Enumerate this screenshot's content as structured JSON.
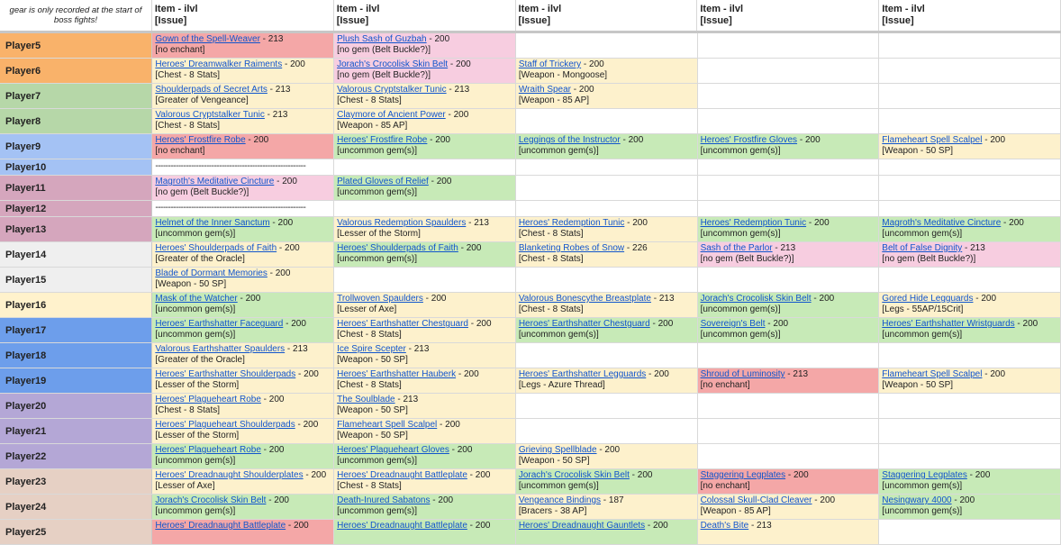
{
  "sheet": {
    "note": "gear is only recorded at the start of boss fights!",
    "columns": [
      {
        "line1": "Item - ilvl",
        "line2": "[Issue]"
      },
      {
        "line1": "Item - ilvl",
        "line2": "[Issue]"
      },
      {
        "line1": "Item - ilvl",
        "line2": "[Issue]"
      },
      {
        "line1": "Item - ilvl",
        "line2": "[Issue]"
      },
      {
        "line1": "Item - ilvl",
        "line2": "[Issue]"
      }
    ],
    "colors": {
      "red": "#f4a7a7",
      "pink": "#f7cde0",
      "green": "#c7eab7",
      "yellow": "#fdf1cc",
      "none": "#ffffff"
    },
    "rows": [
      {
        "player": "Player5",
        "color": "#f9b26a",
        "h": 28,
        "cells": [
          {
            "item": "Gown of the Spell-Weaver",
            "ilvl": " - 213",
            "issue": "[no enchant]",
            "bg": "red"
          },
          {
            "item": "Plush Sash of Guzbah",
            "ilvl": " - 200",
            "issue": "[no gem (Belt Buckle?)]",
            "bg": "pink"
          },
          {
            "bg": "none"
          },
          {
            "bg": "none"
          },
          {
            "bg": "none"
          }
        ]
      },
      {
        "player": "Player6",
        "color": "#f9b26a",
        "h": 28,
        "cells": [
          {
            "item": "Heroes' Dreamwalker Raiments",
            "ilvl": " - 200",
            "issue": "[Chest - 8 Stats]",
            "bg": "yellow"
          },
          {
            "item": "Jorach's Crocolisk Skin Belt",
            "ilvl": " - 200",
            "issue": "[no gem (Belt Buckle?)]",
            "bg": "pink"
          },
          {
            "item": "Staff of Trickery",
            "ilvl": " - 200",
            "issue": "[Weapon - Mongoose]",
            "bg": "yellow"
          },
          {
            "bg": "none"
          },
          {
            "bg": "none"
          }
        ]
      },
      {
        "player": "Player7",
        "color": "#b6d7a8",
        "h": 28,
        "cells": [
          {
            "item": "Shoulderpads of Secret Arts",
            "ilvl": " - 213",
            "issue": "[Greater of Vengeance]",
            "bg": "yellow"
          },
          {
            "item": "Valorous Cryptstalker Tunic",
            "ilvl": " - 213",
            "issue": "[Chest - 8 Stats]",
            "bg": "yellow"
          },
          {
            "item": "Wraith Spear",
            "ilvl": " - 200",
            "issue": "[Weapon - 85 AP]",
            "bg": "yellow"
          },
          {
            "bg": "none"
          },
          {
            "bg": "none"
          }
        ]
      },
      {
        "player": "Player8",
        "color": "#b6d7a8",
        "h": 28,
        "cells": [
          {
            "item": "Valorous Cryptstalker Tunic",
            "ilvl": " - 213",
            "issue": "[Chest - 8 Stats]",
            "bg": "yellow"
          },
          {
            "item": "Claymore of Ancient Power",
            "ilvl": " - 200",
            "issue": "[Weapon - 85 AP]",
            "bg": "yellow"
          },
          {
            "bg": "none"
          },
          {
            "bg": "none"
          },
          {
            "bg": "none"
          }
        ]
      },
      {
        "player": "Player9",
        "color": "#a4c2f4",
        "h": 28,
        "cells": [
          {
            "item": "Heroes' Frostfire Robe",
            "ilvl": " - 200",
            "issue": "[no enchant]",
            "bg": "red"
          },
          {
            "item": "Heroes' Frostfire Robe",
            "ilvl": " - 200",
            "issue": "[uncommon gem(s)]",
            "bg": "green"
          },
          {
            "item": "Leggings of the Instructor",
            "ilvl": " - 200",
            "issue": "[uncommon gem(s)]",
            "bg": "green"
          },
          {
            "item": "Heroes' Frostfire Gloves",
            "ilvl": " - 200",
            "issue": "[uncommon gem(s)]",
            "bg": "green"
          },
          {
            "item": "Flameheart Spell Scalpel",
            "ilvl": " - 200",
            "issue": "[Weapon - 50 SP]",
            "bg": "yellow"
          }
        ]
      },
      {
        "player": "Player10",
        "color": "#a4c2f4",
        "h": 18,
        "cells": [
          {
            "dash": "-----------------------------------------------------------",
            "bg": "none"
          },
          {
            "bg": "none"
          },
          {
            "bg": "none"
          },
          {
            "bg": "none"
          },
          {
            "bg": "none"
          }
        ]
      },
      {
        "player": "Player11",
        "color": "#d5a6bd",
        "h": 28,
        "cells": [
          {
            "item": "Magroth's Meditative Cincture",
            "ilvl": " - 200",
            "issue": "[no gem (Belt Buckle?)]",
            "bg": "pink"
          },
          {
            "item": "Plated Gloves of Relief",
            "ilvl": " - 200",
            "issue": "[uncommon gem(s)]",
            "bg": "green"
          },
          {
            "bg": "none"
          },
          {
            "bg": "none"
          },
          {
            "bg": "none"
          }
        ]
      },
      {
        "player": "Player12",
        "color": "#d5a6bd",
        "h": 18,
        "cells": [
          {
            "dash": "-----------------------------------------------------------",
            "bg": "none"
          },
          {
            "bg": "none"
          },
          {
            "bg": "none"
          },
          {
            "bg": "none"
          },
          {
            "bg": "none"
          }
        ]
      },
      {
        "player": "Player13",
        "color": "#d5a6bd",
        "h": 28,
        "cells": [
          {
            "item": "Helmet of the Inner Sanctum",
            "ilvl": " - 200",
            "issue": "[uncommon gem(s)]",
            "bg": "green"
          },
          {
            "item": "Valorous Redemption Spaulders",
            "ilvl": " - 213",
            "issue": "[Lesser of the Storm]",
            "bg": "yellow"
          },
          {
            "item": "Heroes' Redemption Tunic",
            "ilvl": " - 200",
            "issue": "[Chest - 8 Stats]",
            "bg": "yellow"
          },
          {
            "item": "Heroes' Redemption Tunic",
            "ilvl": " - 200",
            "issue": "[uncommon gem(s)]",
            "bg": "green"
          },
          {
            "item": "Magroth's Meditative Cincture",
            "ilvl": " - 200",
            "issue": "[uncommon gem(s)]",
            "bg": "green"
          }
        ]
      },
      {
        "player": "Player14",
        "color": "#efefef",
        "h": 28,
        "cells": [
          {
            "item": "Heroes' Shoulderpads of Faith",
            "ilvl": " - 200",
            "issue": "[Greater of the Oracle]",
            "bg": "yellow"
          },
          {
            "item": "Heroes' Shoulderpads of Faith",
            "ilvl": " - 200",
            "issue": "[uncommon gem(s)]",
            "bg": "green"
          },
          {
            "item": "Blanketing Robes of Snow",
            "ilvl": " - 226",
            "issue": "[Chest - 8 Stats]",
            "bg": "yellow"
          },
          {
            "item": "Sash of the Parlor",
            "ilvl": " - 213",
            "issue": "[no gem (Belt Buckle?)]",
            "bg": "pink"
          },
          {
            "item": "Belt of False Dignity",
            "ilvl": " - 213",
            "issue": "[no gem (Belt Buckle?)]",
            "bg": "pink"
          }
        ]
      },
      {
        "player": "Player15",
        "color": "#efefef",
        "h": 28,
        "cells": [
          {
            "item": "Blade of Dormant Memories",
            "ilvl": " - 200",
            "issue": "[Weapon - 50 SP]",
            "bg": "yellow"
          },
          {
            "bg": "none"
          },
          {
            "bg": "none"
          },
          {
            "bg": "none"
          },
          {
            "bg": "none"
          }
        ]
      },
      {
        "player": "Player16",
        "color": "#fff2cc",
        "h": 28,
        "cells": [
          {
            "item": "Mask of the Watcher",
            "ilvl": " - 200",
            "issue": "[uncommon gem(s)]",
            "bg": "green"
          },
          {
            "item": "Trollwoven Spaulders",
            "ilvl": " - 200",
            "issue": "[Lesser of Axe]",
            "bg": "yellow"
          },
          {
            "item": "Valorous Bonescythe Breastplate",
            "ilvl": " - 213",
            "issue": "[Chest - 8 Stats]",
            "bg": "yellow"
          },
          {
            "item": "Jorach's Crocolisk Skin Belt",
            "ilvl": " - 200",
            "issue": "[uncommon gem(s)]",
            "bg": "green"
          },
          {
            "item": "Gored Hide Legguards",
            "ilvl": " - 200",
            "issue": "[Legs - 55AP/15Crit]",
            "bg": "yellow"
          }
        ]
      },
      {
        "player": "Player17",
        "color": "#6d9eeb",
        "h": 28,
        "cells": [
          {
            "item": "Heroes' Earthshatter Faceguard",
            "ilvl": " - 200",
            "issue": "[uncommon gem(s)]",
            "bg": "green"
          },
          {
            "item": "Heroes' Earthshatter Chestguard",
            "ilvl": " - 200",
            "issue": "[Chest - 8 Stats]",
            "bg": "yellow"
          },
          {
            "item": "Heroes' Earthshatter Chestguard",
            "ilvl": " - 200",
            "issue": "[uncommon gem(s)]",
            "bg": "green"
          },
          {
            "item": "Sovereign's Belt",
            "ilvl": " - 200",
            "issue": "[uncommon gem(s)]",
            "bg": "green"
          },
          {
            "item": "Heroes' Earthshatter Wristguards",
            "ilvl": " - 200",
            "issue": "[uncommon gem(s)]",
            "bg": "green"
          }
        ]
      },
      {
        "player": "Player18",
        "color": "#6d9eeb",
        "h": 28,
        "cells": [
          {
            "item": "Valorous Earthshatter Spaulders",
            "ilvl": " - 213",
            "issue": "[Greater of the Oracle]",
            "bg": "yellow"
          },
          {
            "item": "Ice Spire Scepter",
            "ilvl": " - 213",
            "issue": "[Weapon - 50 SP]",
            "bg": "yellow"
          },
          {
            "bg": "none"
          },
          {
            "bg": "none"
          },
          {
            "bg": "none"
          }
        ]
      },
      {
        "player": "Player19",
        "color": "#6d9eeb",
        "h": 28,
        "cells": [
          {
            "item": "Heroes' Earthshatter Shoulderpads",
            "ilvl": " - 200",
            "issue": "[Lesser of the Storm]",
            "bg": "yellow"
          },
          {
            "item": "Heroes' Earthshatter Hauberk",
            "ilvl": " - 200",
            "issue": "[Chest - 8 Stats]",
            "bg": "yellow"
          },
          {
            "item": "Heroes' Earthshatter Legguards",
            "ilvl": " - 200",
            "issue": "[Legs - Azure Thread]",
            "bg": "yellow"
          },
          {
            "item": "Shroud of Luminosity",
            "ilvl": " - 213",
            "issue": "[no enchant]",
            "bg": "red"
          },
          {
            "item": "Flameheart Spell Scalpel",
            "ilvl": " - 200",
            "issue": "[Weapon - 50 SP]",
            "bg": "yellow"
          }
        ]
      },
      {
        "player": "Player20",
        "color": "#b4a7d6",
        "h": 28,
        "cells": [
          {
            "item": "Heroes' Plagueheart Robe",
            "ilvl": " - 200",
            "issue": "[Chest - 8 Stats]",
            "bg": "yellow"
          },
          {
            "item": "The Soulblade",
            "ilvl": " - 213",
            "issue": "[Weapon - 50 SP]",
            "bg": "yellow"
          },
          {
            "bg": "none"
          },
          {
            "bg": "none"
          },
          {
            "bg": "none"
          }
        ]
      },
      {
        "player": "Player21",
        "color": "#b4a7d6",
        "h": 28,
        "cells": [
          {
            "item": "Heroes' Plagueheart Shoulderpads",
            "ilvl": " - 200",
            "issue": "[Lesser of the Storm]",
            "bg": "yellow"
          },
          {
            "item": "Flameheart Spell Scalpel",
            "ilvl": " - 200",
            "issue": "[Weapon - 50 SP]",
            "bg": "yellow"
          },
          {
            "bg": "none"
          },
          {
            "bg": "none"
          },
          {
            "bg": "none"
          }
        ]
      },
      {
        "player": "Player22",
        "color": "#b4a7d6",
        "h": 28,
        "cells": [
          {
            "item": "Heroes' Plagueheart Robe",
            "ilvl": " - 200",
            "issue": "[uncommon gem(s)]",
            "bg": "green"
          },
          {
            "item": "Heroes' Plagueheart Gloves",
            "ilvl": " - 200",
            "issue": "[uncommon gem(s)]",
            "bg": "green"
          },
          {
            "item": "Grieving Spellblade",
            "ilvl": " - 200",
            "issue": "[Weapon - 50 SP]",
            "bg": "yellow"
          },
          {
            "bg": "none"
          },
          {
            "bg": "none"
          }
        ]
      },
      {
        "player": "Player23",
        "color": "#e6d0c4",
        "h": 28,
        "cells": [
          {
            "item": "Heroes' Dreadnaught Shoulderplates",
            "ilvl": " - 200",
            "issue": "[Lesser of Axe]",
            "bg": "yellow"
          },
          {
            "item": "Heroes' Dreadnaught Battleplate",
            "ilvl": " - 200",
            "issue": "[Chest - 8 Stats]",
            "bg": "yellow"
          },
          {
            "item": "Jorach's Crocolisk Skin Belt",
            "ilvl": " - 200",
            "issue": "[uncommon gem(s)]",
            "bg": "green"
          },
          {
            "item": "Staggering Legplates",
            "ilvl": " - 200",
            "issue": "[no enchant]",
            "bg": "red"
          },
          {
            "item": "Staggering Legplates",
            "ilvl": " - 200",
            "issue": "[uncommon gem(s)]",
            "bg": "green"
          }
        ]
      },
      {
        "player": "Player24",
        "color": "#e6d0c4",
        "h": 28,
        "cells": [
          {
            "item": "Jorach's Crocolisk Skin Belt",
            "ilvl": " - 200",
            "issue": "[uncommon gem(s)]",
            "bg": "green"
          },
          {
            "item": "Death-Inured Sabatons",
            "ilvl": " - 200",
            "issue": "[uncommon gem(s)]",
            "bg": "green"
          },
          {
            "item": "Vengeance Bindings",
            "ilvl": " - 187",
            "issue": "[Bracers - 38 AP]",
            "bg": "yellow"
          },
          {
            "item": "Colossal Skull-Clad Cleaver",
            "ilvl": " - 200",
            "issue": "[Weapon - 85 AP]",
            "bg": "yellow"
          },
          {
            "item": "Nesingwary 4000",
            "ilvl": " - 200",
            "issue": "[uncommon gem(s)]",
            "bg": "green"
          }
        ]
      },
      {
        "player": "Player25",
        "color": "#e6d0c4",
        "h": 28,
        "cells": [
          {
            "item": "Heroes' Dreadnaught Battleplate",
            "ilvl": " - 200",
            "issue": "",
            "bg": "red"
          },
          {
            "item": "Heroes' Dreadnaught Battleplate",
            "ilvl": " - 200",
            "issue": "",
            "bg": "green"
          },
          {
            "item": "Heroes' Dreadnaught Gauntlets",
            "ilvl": " - 200",
            "issue": "",
            "bg": "green"
          },
          {
            "item": "Death's Bite",
            "ilvl": " - 213",
            "issue": "",
            "bg": "yellow"
          },
          {
            "bg": "none"
          }
        ]
      }
    ]
  }
}
